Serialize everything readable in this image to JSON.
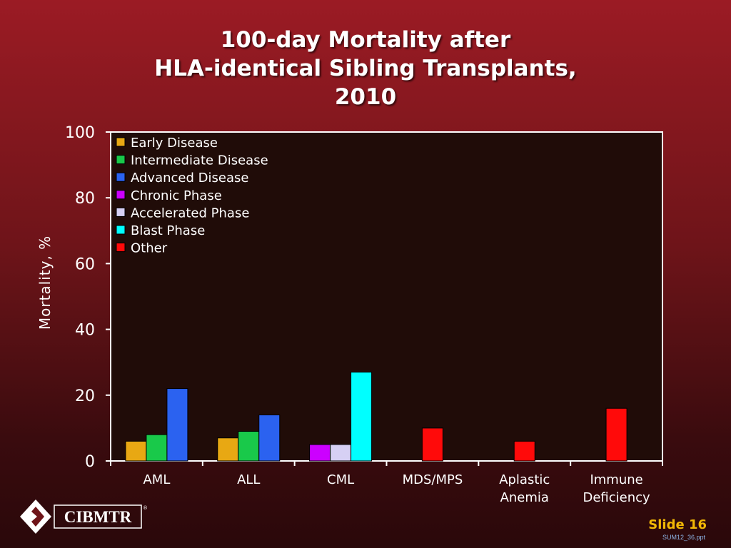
{
  "slide": {
    "title_lines": [
      "100-day Mortality after",
      "HLA-identical Sibling Transplants,",
      "2010"
    ],
    "slide_label": "Slide 16",
    "file_name": "SUM12_36.ppt",
    "logo_text": "CIBMTR",
    "logo_mark": "®"
  },
  "colors": {
    "plot_bg": "#200c08",
    "axis": "#ffffff",
    "Early Disease": "#e8a813",
    "Intermediate Disease": "#19c94a",
    "Advanced Disease": "#2b62f0",
    "Chronic Phase": "#cc00ff",
    "Accelerated Phase": "#d6d0f4",
    "Blast Phase": "#00ffff",
    "Other": "#ff0a0a"
  },
  "chart_data": {
    "type": "bar",
    "ylabel": "Mortality, %",
    "xlabel": "",
    "ylim": [
      0,
      100
    ],
    "yticks": [
      0,
      20,
      40,
      60,
      80,
      100
    ],
    "categories": [
      "AML",
      "ALL",
      "CML",
      "MDS/MPS",
      "Aplastic Anemia",
      "Immune Deficiency"
    ],
    "category_label_lines": [
      [
        "AML"
      ],
      [
        "ALL"
      ],
      [
        "CML"
      ],
      [
        "MDS/MPS"
      ],
      [
        "Aplastic",
        "Anemia"
      ],
      [
        "Immune",
        "Deficiency"
      ]
    ],
    "legend_position": "top-left",
    "series": [
      {
        "name": "Early Disease",
        "values": [
          6,
          7,
          null,
          null,
          null,
          null
        ]
      },
      {
        "name": "Intermediate Disease",
        "values": [
          8,
          9,
          null,
          null,
          null,
          null
        ]
      },
      {
        "name": "Advanced Disease",
        "values": [
          22,
          14,
          null,
          null,
          null,
          null
        ]
      },
      {
        "name": "Chronic Phase",
        "values": [
          null,
          null,
          5,
          null,
          null,
          null
        ]
      },
      {
        "name": "Accelerated Phase",
        "values": [
          null,
          null,
          5,
          null,
          null,
          null
        ]
      },
      {
        "name": "Blast Phase",
        "values": [
          null,
          null,
          27,
          null,
          null,
          null
        ]
      },
      {
        "name": "Other",
        "values": [
          null,
          null,
          null,
          10,
          6,
          16
        ]
      }
    ]
  }
}
